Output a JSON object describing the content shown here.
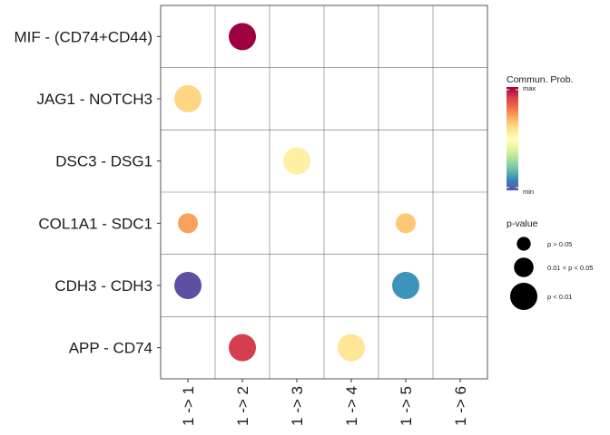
{
  "chart_data": {
    "type": "dot",
    "x_categories": [
      "1 -> 1",
      "1 -> 2",
      "1 -> 3",
      "1 -> 4",
      "1 -> 5",
      "1 -> 6"
    ],
    "y_categories": [
      "MIF - (CD74+CD44)",
      "JAG1 - NOTCH3",
      "DSC3 - DSG1",
      "COL1A1 - SDC1",
      "CDH3 - CDH3",
      "APP - CD74"
    ],
    "points": [
      {
        "x": "1 -> 2",
        "y": "MIF - (CD74+CD44)",
        "prob": 1.0,
        "pval_level": 3
      },
      {
        "x": "1 -> 1",
        "y": "JAG1 - NOTCH3",
        "prob": 0.62,
        "pval_level": 3
      },
      {
        "x": "1 -> 3",
        "y": "DSC3 - DSG1",
        "prob": 0.55,
        "pval_level": 3
      },
      {
        "x": "1 -> 1",
        "y": "COL1A1 - SDC1",
        "prob": 0.72,
        "pval_level": 2
      },
      {
        "x": "1 -> 5",
        "y": "COL1A1 - SDC1",
        "prob": 0.65,
        "pval_level": 2
      },
      {
        "x": "1 -> 1",
        "y": "CDH3 - CDH3",
        "prob": 0.0,
        "pval_level": 3
      },
      {
        "x": "1 -> 5",
        "y": "CDH3 - CDH3",
        "prob": 0.12,
        "pval_level": 3
      },
      {
        "x": "1 -> 2",
        "y": "APP - CD74",
        "prob": 0.9,
        "pval_level": 3
      },
      {
        "x": "1 -> 4",
        "y": "APP - CD74",
        "prob": 0.58,
        "pval_level": 3
      }
    ],
    "colorbar": {
      "title": "Commun. Prob.",
      "max_label": "max",
      "min_label": "min",
      "colors": [
        "#5E4FA2",
        "#3288BD",
        "#66C2A5",
        "#ABDDA4",
        "#E6F598",
        "#FFFFBF",
        "#FEE08B",
        "#FDAE61",
        "#F46D43",
        "#D53E4F",
        "#9E0142"
      ]
    },
    "size_legend": {
      "title": "p-value",
      "items": [
        {
          "label": "p > 0.05",
          "level": 1
        },
        {
          "label": "0.01 < p < 0.05",
          "level": 2
        },
        {
          "label": "p < 0.01",
          "level": 3
        }
      ]
    },
    "grid": true,
    "legend_position": "right"
  }
}
